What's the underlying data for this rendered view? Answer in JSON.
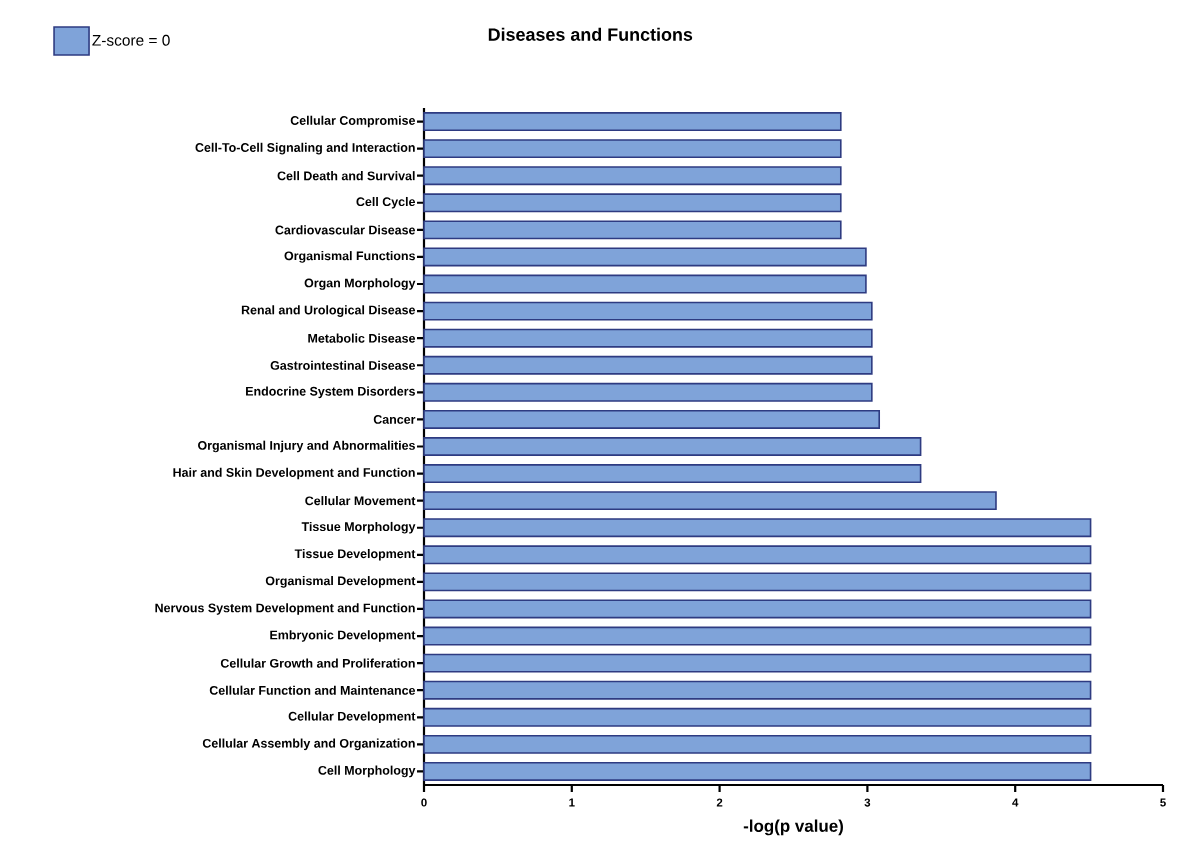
{
  "chart_data": {
    "type": "bar",
    "orientation": "horizontal",
    "title": "Diseases and Functions",
    "xlabel": "-log(p value)",
    "categories": [
      "Cellular Compromise",
      "Cell-To-Cell Signaling and Interaction",
      "Cell Death and Survival",
      "Cell Cycle",
      "Cardiovascular Disease",
      "Organismal Functions",
      "Organ Morphology",
      "Renal and Urological Disease",
      "Metabolic Disease",
      "Gastrointestinal Disease",
      "Endocrine System Disorders",
      "Cancer",
      "Organismal Injury and Abnormalities",
      "Hair and Skin Development and Function",
      "Cellular Movement",
      "Tissue Morphology",
      "Tissue Development",
      "Organismal Development",
      "Nervous System Development and Function",
      "Embryonic Development",
      "Cellular Growth and Proliferation",
      "Cellular Function and Maintenance",
      "Cellular Development",
      "Cellular Assembly and Organization",
      "Cell Morphology"
    ],
    "series": [
      {
        "name": "Z-score = 0",
        "color": "#7fa3d9",
        "values": [
          2.82,
          2.82,
          2.82,
          2.82,
          2.82,
          2.99,
          2.99,
          3.03,
          3.03,
          3.03,
          3.03,
          3.08,
          3.36,
          3.36,
          3.87,
          4.51,
          4.51,
          4.51,
          4.51,
          4.51,
          4.51,
          4.51,
          4.51,
          4.51,
          4.51
        ]
      }
    ],
    "xlim": [
      0,
      5
    ],
    "xticks": [
      0,
      1,
      2,
      3,
      4,
      5
    ],
    "legend": "top left"
  }
}
